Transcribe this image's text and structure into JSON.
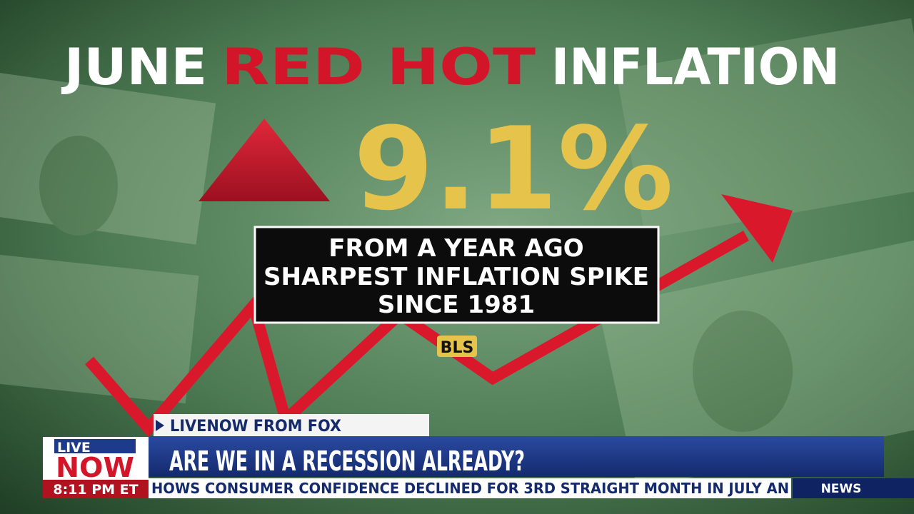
{
  "headline": {
    "parts": [
      "JUNE",
      "RED HOT",
      "INFLATION"
    ]
  },
  "stat": {
    "figure": "9.1%",
    "lines": [
      "FROM A YEAR AGO",
      "SHARPEST INFLATION SPIKE",
      "SINCE 1981"
    ],
    "source": "BLS"
  },
  "lower_third": {
    "network_tag": "LIVENOW FROM FOX",
    "headline": "ARE WE IN A RECESSION ALREADY?",
    "logo": {
      "top": "LIVE",
      "bottom": "NOW"
    },
    "time": "8:11 PM ET",
    "ticker": "HOWS CONSUMER CONFIDENCE DECLINED FOR 3RD STRAIGHT MONTH IN JULY AN",
    "ticker_label": "NEWS"
  }
}
